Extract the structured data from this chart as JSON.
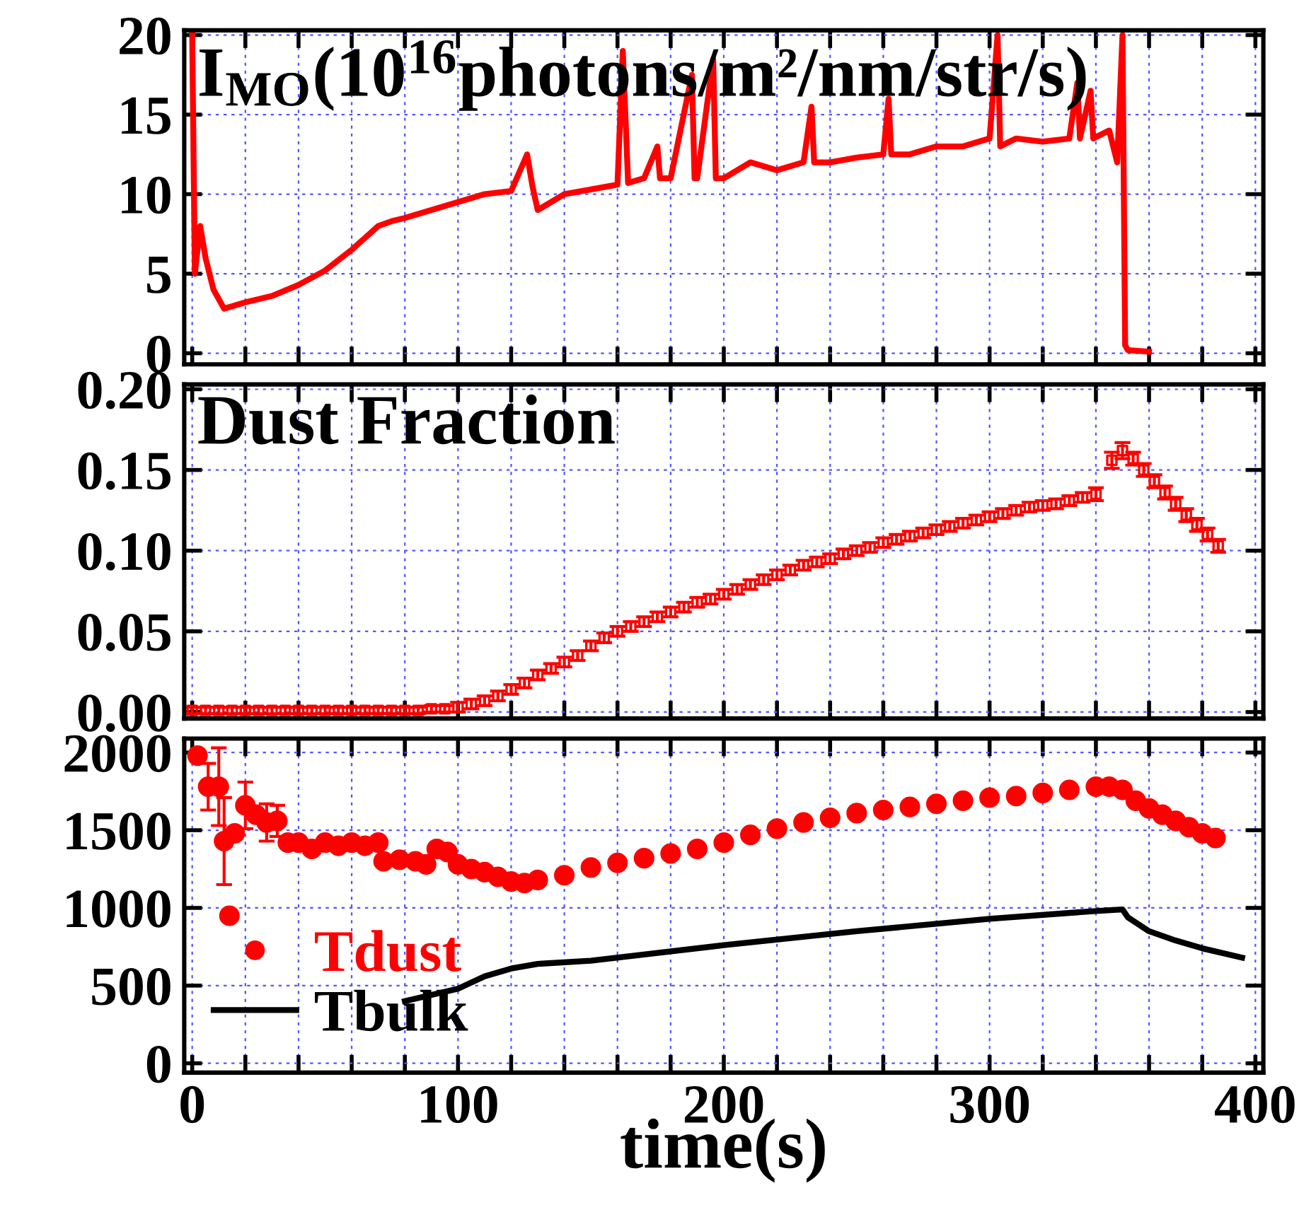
{
  "chart_data": [
    {
      "type": "line",
      "annotations": [
        "I$_{MO}$(10$^{16}$photons/m²/nm/str/s)"
      ],
      "tick_labels": "y",
      "grid": true,
      "xlim": [
        -3,
        403
      ],
      "xticks": [
        0,
        {
          "value": 20,
          "label": null
        },
        {
          "value": 40,
          "label": null
        },
        {
          "value": 60,
          "label": null
        },
        {
          "value": 80,
          "label": null
        },
        100,
        {
          "value": 120,
          "label": null
        },
        {
          "value": 140,
          "label": null
        },
        {
          "value": 160,
          "label": null
        },
        {
          "value": 180,
          "label": null
        },
        200,
        {
          "value": 220,
          "label": null
        },
        {
          "value": 240,
          "label": null
        },
        {
          "value": 260,
          "label": null
        },
        {
          "value": 280,
          "label": null
        },
        300,
        {
          "value": 320,
          "label": null
        },
        {
          "value": 340,
          "label": null
        },
        {
          "value": 360,
          "label": null
        },
        {
          "value": 380,
          "label": null
        },
        400
      ],
      "ylim": [
        -0.7,
        20.3
      ],
      "yticks": [
        0,
        5,
        10,
        15,
        20
      ],
      "series": [
        {
          "color": "#ff0000",
          "x": [
            0,
            1,
            3,
            5,
            8,
            12,
            20,
            30,
            40,
            50,
            60,
            70,
            75,
            80,
            90,
            100,
            110,
            120,
            126,
            128,
            130,
            140,
            150,
            160,
            162,
            164,
            170,
            175,
            176,
            180,
            188,
            189,
            190,
            196,
            197,
            200,
            210,
            220,
            230,
            233,
            234,
            240,
            250,
            260,
            262,
            263,
            270,
            280,
            290,
            300,
            303,
            304,
            310,
            320,
            330,
            333,
            334,
            338,
            339,
            345,
            348,
            350,
            351,
            352,
            360
          ],
          "values": [
            20,
            5,
            8,
            6,
            4,
            2.8,
            3.2,
            3.6,
            4.3,
            5.2,
            6.5,
            8,
            8.3,
            8.5,
            9,
            9.5,
            10,
            10.2,
            12.5,
            10.5,
            9,
            10,
            10.3,
            10.6,
            19,
            10.7,
            11,
            13,
            11,
            11,
            17.5,
            11,
            11,
            18.5,
            11,
            11,
            12,
            11.5,
            12,
            15.5,
            12,
            12,
            12.3,
            12.5,
            16,
            12.5,
            12.5,
            13,
            13,
            13.5,
            20,
            13,
            13.5,
            13.3,
            13.5,
            17,
            13.5,
            16.5,
            13.5,
            14,
            12,
            20,
            0.5,
            0.2,
            0.1
          ]
        }
      ]
    },
    {
      "type": "scatter",
      "annotations": [
        "Dust Fraction"
      ],
      "tick_labels": "y",
      "grid": true,
      "marker": "square",
      "xlim": [
        -3,
        403
      ],
      "xticks": [
        0,
        {
          "value": 20,
          "label": null
        },
        {
          "value": 40,
          "label": null
        },
        {
          "value": 60,
          "label": null
        },
        {
          "value": 80,
          "label": null
        },
        100,
        {
          "value": 120,
          "label": null
        },
        {
          "value": 140,
          "label": null
        },
        {
          "value": 160,
          "label": null
        },
        {
          "value": 180,
          "label": null
        },
        200,
        {
          "value": 220,
          "label": null
        },
        {
          "value": 240,
          "label": null
        },
        {
          "value": 260,
          "label": null
        },
        {
          "value": 280,
          "label": null
        },
        300,
        {
          "value": 320,
          "label": null
        },
        {
          "value": 340,
          "label": null
        },
        {
          "value": 360,
          "label": null
        },
        {
          "value": 380,
          "label": null
        },
        400
      ],
      "ylim": [
        -0.004,
        0.203
      ],
      "yticks": [
        {
          "value": 0,
          "label": "0.00"
        },
        {
          "value": 0.05,
          "label": "0.05"
        },
        {
          "value": 0.1,
          "label": "0.10"
        },
        {
          "value": 0.15,
          "label": "0.15"
        },
        {
          "value": 0.2,
          "label": "0.20"
        }
      ],
      "series": [
        {
          "color": "#ff0000",
          "x": [
            0,
            5,
            10,
            15,
            20,
            25,
            30,
            35,
            40,
            45,
            50,
            55,
            60,
            65,
            70,
            75,
            80,
            85,
            90,
            95,
            100,
            105,
            110,
            115,
            120,
            125,
            130,
            135,
            140,
            145,
            150,
            155,
            160,
            165,
            170,
            175,
            180,
            185,
            190,
            195,
            200,
            205,
            210,
            215,
            220,
            225,
            230,
            235,
            240,
            245,
            250,
            255,
            260,
            265,
            270,
            275,
            280,
            285,
            290,
            295,
            300,
            305,
            310,
            315,
            320,
            325,
            330,
            335,
            340,
            346,
            350,
            354,
            358,
            362,
            366,
            370,
            374,
            378,
            382,
            386
          ],
          "values": [
            0.001,
            0.001,
            0.001,
            0.001,
            0.001,
            0.001,
            0.001,
            0.001,
            0.001,
            0.001,
            0.001,
            0.001,
            0.001,
            0.001,
            0.001,
            0.001,
            0.001,
            0.001,
            0.002,
            0.002,
            0.003,
            0.005,
            0.007,
            0.01,
            0.014,
            0.018,
            0.023,
            0.027,
            0.031,
            0.035,
            0.041,
            0.046,
            0.05,
            0.053,
            0.056,
            0.059,
            0.062,
            0.065,
            0.068,
            0.07,
            0.073,
            0.076,
            0.079,
            0.082,
            0.085,
            0.088,
            0.091,
            0.093,
            0.095,
            0.098,
            0.1,
            0.102,
            0.105,
            0.107,
            0.109,
            0.111,
            0.113,
            0.115,
            0.117,
            0.119,
            0.121,
            0.123,
            0.125,
            0.127,
            0.128,
            0.129,
            0.131,
            0.133,
            0.135,
            0.156,
            0.162,
            0.157,
            0.15,
            0.143,
            0.136,
            0.129,
            0.122,
            0.116,
            0.11,
            0.103
          ],
          "errors": [
            0.002,
            0.002,
            0.002,
            0.002,
            0.002,
            0.002,
            0.002,
            0.002,
            0.002,
            0.002,
            0.002,
            0.002,
            0.002,
            0.002,
            0.002,
            0.002,
            0.002,
            0.002,
            0.002,
            0.002,
            0.003,
            0.003,
            0.003,
            0.003,
            0.003,
            0.003,
            0.003,
            0.003,
            0.003,
            0.003,
            0.003,
            0.003,
            0.003,
            0.003,
            0.003,
            0.003,
            0.003,
            0.003,
            0.003,
            0.003,
            0.003,
            0.003,
            0.003,
            0.003,
            0.003,
            0.003,
            0.003,
            0.003,
            0.003,
            0.003,
            0.003,
            0.003,
            0.003,
            0.003,
            0.003,
            0.003,
            0.003,
            0.003,
            0.003,
            0.003,
            0.003,
            0.003,
            0.003,
            0.003,
            0.003,
            0.003,
            0.003,
            0.003,
            0.004,
            0.005,
            0.005,
            0.004,
            0.004,
            0.004,
            0.004,
            0.004,
            0.004,
            0.004,
            0.004,
            0.004
          ]
        }
      ]
    },
    {
      "type": "scatter",
      "xlabel": "time(s)",
      "grid": true,
      "legend": "bottom left",
      "xlim": [
        -3,
        403
      ],
      "xticks": [
        0,
        {
          "value": 20,
          "label": null
        },
        {
          "value": 40,
          "label": null
        },
        {
          "value": 60,
          "label": null
        },
        {
          "value": 80,
          "label": null
        },
        100,
        {
          "value": 120,
          "label": null
        },
        {
          "value": 140,
          "label": null
        },
        {
          "value": 160,
          "label": null
        },
        {
          "value": 180,
          "label": null
        },
        200,
        {
          "value": 220,
          "label": null
        },
        {
          "value": 240,
          "label": null
        },
        {
          "value": 260,
          "label": null
        },
        {
          "value": 280,
          "label": null
        },
        300,
        {
          "value": 320,
          "label": null
        },
        {
          "value": 340,
          "label": null
        },
        {
          "value": 360,
          "label": null
        },
        {
          "value": 380,
          "label": null
        },
        400
      ],
      "ylim": [
        -60,
        2090
      ],
      "yticks": [
        0,
        500,
        1000,
        1500,
        2000
      ],
      "series": [
        {
          "name": "Tdust",
          "color": "#ff0000",
          "marker": "circle",
          "x": [
            2,
            6,
            10,
            12,
            14,
            16,
            20,
            24,
            28,
            32,
            36,
            40,
            45,
            50,
            55,
            60,
            65,
            70,
            72,
            78,
            84,
            88,
            92,
            96,
            100,
            105,
            110,
            115,
            120,
            125,
            130,
            140,
            150,
            160,
            170,
            180,
            190,
            200,
            210,
            220,
            230,
            240,
            250,
            260,
            270,
            280,
            290,
            300,
            310,
            320,
            330,
            340,
            345,
            350,
            355,
            360,
            365,
            370,
            375,
            380,
            385
          ],
          "values": [
            1980,
            1780,
            1780,
            1430,
            950,
            1480,
            1660,
            1600,
            1550,
            1560,
            1420,
            1420,
            1380,
            1420,
            1400,
            1420,
            1400,
            1420,
            1300,
            1310,
            1300,
            1280,
            1380,
            1360,
            1280,
            1250,
            1230,
            1200,
            1170,
            1160,
            1180,
            1210,
            1260,
            1290,
            1320,
            1350,
            1380,
            1420,
            1470,
            1510,
            1550,
            1580,
            1610,
            1630,
            1650,
            1670,
            1690,
            1710,
            1720,
            1740,
            1760,
            1780,
            1780,
            1760,
            1690,
            1640,
            1600,
            1560,
            1520,
            1480,
            1450
          ],
          "errors": [
            null,
            150,
            250,
            280,
            null,
            null,
            150,
            null,
            120,
            100,
            null,
            null,
            null,
            null,
            null,
            null,
            null,
            null,
            null,
            null,
            null,
            null,
            null,
            null,
            null,
            null,
            null,
            null,
            null,
            null,
            null,
            null,
            null,
            null,
            null,
            null,
            null,
            null,
            null,
            null,
            null,
            null,
            null,
            null,
            null,
            null,
            null,
            null,
            null,
            null,
            null,
            null,
            null,
            null,
            null,
            null,
            null,
            null,
            null,
            null,
            null
          ]
        },
        {
          "name": "Tbulk",
          "type": "line",
          "color": "#000000",
          "x": [
            80,
            100,
            110,
            120,
            130,
            150,
            200,
            250,
            300,
            340,
            350,
            352,
            360,
            370,
            380,
            395
          ],
          "values": [
            400,
            480,
            560,
            610,
            640,
            660,
            760,
            850,
            930,
            980,
            990,
            940,
            850,
            790,
            740,
            680
          ]
        }
      ]
    }
  ]
}
